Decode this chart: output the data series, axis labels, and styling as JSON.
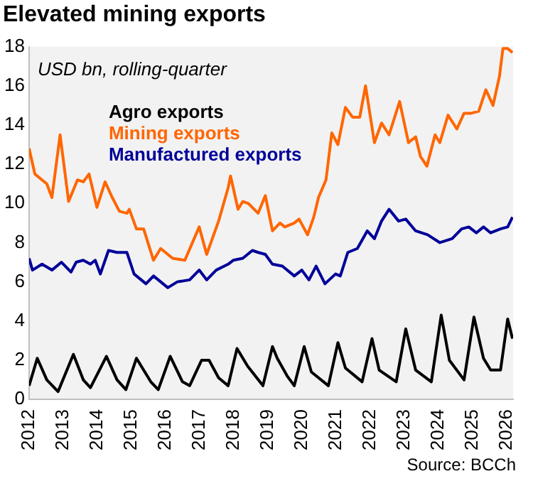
{
  "chart_data": {
    "type": "line",
    "title": "Elevated mining exports",
    "annotations": [
      "USD bn, rolling-quarter",
      "Source: BCCh"
    ],
    "xlim": [
      2012,
      2026.2
    ],
    "xticks": [
      2012,
      2013,
      2014,
      2015,
      2016,
      2017,
      2018,
      2019,
      2020,
      2021,
      2022,
      2023,
      2024,
      2025,
      2026
    ],
    "ylim": [
      0,
      18
    ],
    "yticks": [
      0,
      2,
      4,
      6,
      8,
      10,
      12,
      14,
      16,
      18
    ],
    "grid": false,
    "legend": "top left",
    "marker": "none",
    "line_style": "solid",
    "series": [
      {
        "name": "Agro exports",
        "color": "#000000",
        "x": [
          2012,
          2012.24,
          2012.52,
          2012.85,
          2013.3,
          2013.59,
          2013.8,
          2014.27,
          2014.58,
          2014.84,
          2015.15,
          2015.57,
          2015.79,
          2016.14,
          2016.5,
          2016.71,
          2017.06,
          2017.28,
          2017.56,
          2017.84,
          2018.1,
          2018.41,
          2018.77,
          2018.86,
          2019.14,
          2019.28,
          2019.57,
          2019.78,
          2020.07,
          2020.28,
          2020.78,
          2021.06,
          2021.28,
          2021.77,
          2022.06,
          2022.27,
          2022.77,
          2023.05,
          2023.34,
          2023.8,
          2024.09,
          2024.33,
          2024.76,
          2025.05,
          2025.33,
          2025.54,
          2025.83,
          2026.04,
          2026.18
        ],
        "values": [
          0.7,
          2.1,
          1.0,
          0.4,
          2.3,
          1.0,
          0.6,
          2.2,
          1.0,
          0.5,
          2.1,
          0.9,
          0.5,
          2.2,
          0.9,
          0.7,
          2.0,
          2.0,
          1.1,
          0.7,
          2.6,
          1.7,
          0.9,
          0.7,
          2.7,
          2.1,
          1.2,
          0.7,
          2.7,
          1.4,
          0.7,
          2.9,
          1.6,
          0.9,
          3.1,
          1.5,
          0.9,
          3.6,
          1.5,
          0.9,
          4.3,
          2.0,
          1.0,
          4.2,
          2.1,
          1.5,
          1.5,
          4.1,
          3.1
        ]
      },
      {
        "name": "Mining exports",
        "color": "#ff6600",
        "x": [
          2012,
          2012.17,
          2012.38,
          2012.52,
          2012.67,
          2012.91,
          2013.16,
          2013.42,
          2013.59,
          2013.76,
          2013.99,
          2014.23,
          2014.44,
          2014.65,
          2014.87,
          2014.94,
          2015.15,
          2015.36,
          2015.65,
          2015.86,
          2016.21,
          2016.57,
          2016.99,
          2017.21,
          2017.56,
          2017.84,
          2017.91,
          2018.13,
          2018.27,
          2018.43,
          2018.72,
          2018.93,
          2019.14,
          2019.36,
          2019.5,
          2019.78,
          2019.92,
          2020.17,
          2020.35,
          2020.49,
          2020.71,
          2020.88,
          2021.06,
          2021.28,
          2021.49,
          2021.7,
          2021.87,
          2022.13,
          2022.34,
          2022.56,
          2022.87,
          2023.13,
          2023.34,
          2023.48,
          2023.67,
          2023.91,
          2024.05,
          2024.29,
          2024.55,
          2024.76,
          2024.97,
          2025.19,
          2025.4,
          2025.61,
          2025.8,
          2025.9,
          2026.04,
          2026.18
        ],
        "values": [
          12.8,
          11.5,
          11.2,
          11.0,
          10.3,
          13.5,
          10.1,
          11.2,
          11.1,
          11.5,
          9.8,
          11.1,
          10.3,
          9.6,
          9.5,
          9.7,
          8.7,
          8.7,
          7.1,
          7.7,
          7.2,
          7.1,
          8.8,
          7.4,
          9.1,
          10.8,
          11.4,
          9.7,
          10.1,
          10.0,
          9.5,
          10.4,
          8.6,
          9.0,
          8.8,
          9.0,
          9.2,
          8.4,
          9.3,
          10.3,
          11.2,
          13.6,
          13.0,
          14.9,
          14.4,
          14.4,
          16.0,
          13.1,
          14.1,
          13.5,
          15.2,
          13.1,
          13.4,
          12.4,
          11.9,
          13.5,
          13.1,
          14.5,
          13.8,
          14.6,
          14.6,
          14.7,
          15.8,
          15.0,
          16.5,
          17.9,
          17.9,
          17.7
        ]
      },
      {
        "name": "Manufactured exports",
        "color": "#000099",
        "x": [
          2012,
          2012.1,
          2012.38,
          2012.67,
          2012.95,
          2013.23,
          2013.38,
          2013.59,
          2013.8,
          2013.94,
          2014.09,
          2014.33,
          2014.58,
          2014.87,
          2015.08,
          2015.43,
          2015.65,
          2016.07,
          2016.35,
          2016.71,
          2016.99,
          2017.21,
          2017.49,
          2017.84,
          2017.99,
          2018.27,
          2018.55,
          2018.72,
          2018.93,
          2019.14,
          2019.43,
          2019.78,
          2020.0,
          2020.21,
          2020.42,
          2020.68,
          2020.99,
          2021.13,
          2021.35,
          2021.63,
          2021.92,
          2022.13,
          2022.34,
          2022.56,
          2022.84,
          2023.05,
          2023.34,
          2023.69,
          2024.05,
          2024.41,
          2024.69,
          2024.9,
          2025.12,
          2025.33,
          2025.54,
          2025.83,
          2026.04,
          2026.18
        ],
        "values": [
          7.2,
          6.6,
          6.9,
          6.6,
          7.0,
          6.5,
          7.0,
          7.1,
          6.9,
          7.1,
          6.4,
          7.6,
          7.5,
          7.5,
          6.4,
          5.9,
          6.3,
          5.7,
          6.0,
          6.1,
          6.6,
          6.1,
          6.6,
          6.9,
          7.1,
          7.2,
          7.6,
          7.5,
          7.4,
          6.9,
          6.8,
          6.3,
          6.6,
          6.1,
          6.8,
          5.9,
          6.4,
          6.3,
          7.5,
          7.7,
          8.6,
          8.2,
          9.1,
          9.7,
          9.1,
          9.2,
          8.6,
          8.4,
          8.0,
          8.2,
          8.7,
          8.8,
          8.5,
          8.8,
          8.5,
          8.7,
          8.8,
          9.3
        ]
      }
    ]
  }
}
